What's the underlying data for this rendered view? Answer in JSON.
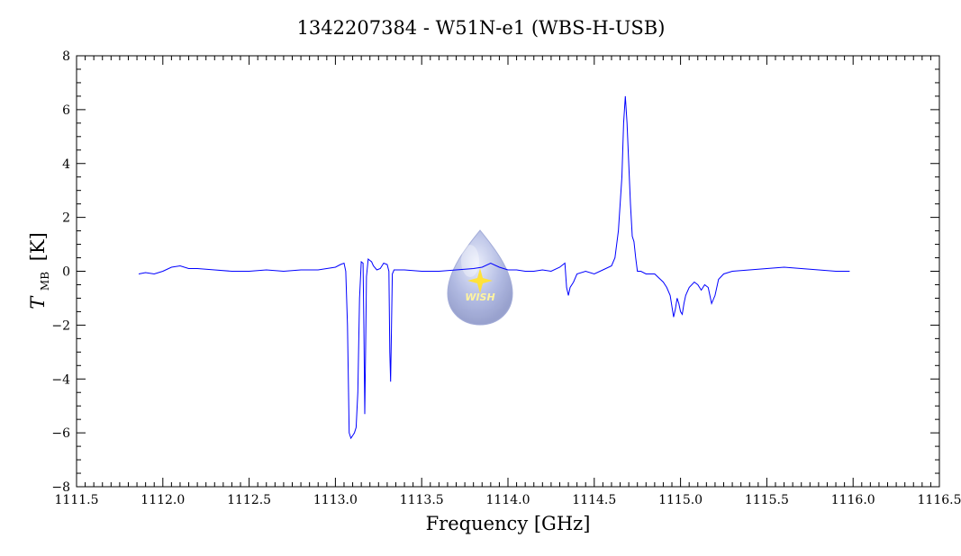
{
  "chart_data": {
    "type": "line",
    "title": "1342207384 - W51N-e1 (WBS-H-USB)",
    "xlabel": "Frequency [GHz]",
    "ylabel_main": "T",
    "ylabel_sub": "MB",
    "ylabel_unit": "[K]",
    "xlim": [
      1111.5,
      1116.5
    ],
    "ylim": [
      -8,
      8
    ],
    "x_ticks": [
      1111.5,
      1112.0,
      1112.5,
      1113.0,
      1113.5,
      1114.0,
      1114.5,
      1115.0,
      1115.5,
      1116.0,
      1116.5
    ],
    "x_tick_labels": [
      "1111.5",
      "1112.0",
      "1112.5",
      "1113.0",
      "1113.5",
      "1114.0",
      "1114.5",
      "1115.0",
      "1115.5",
      "1116.0",
      "1116.5"
    ],
    "y_ticks": [
      -8,
      -6,
      -4,
      -2,
      0,
      2,
      4,
      6,
      8
    ],
    "y_tick_labels": [
      "−8",
      "−6",
      "−4",
      "−2",
      "0",
      "2",
      "4",
      "6",
      "8"
    ],
    "grid": false,
    "series": [
      {
        "color": "#0000ff",
        "x": [
          1111.86,
          1111.9,
          1111.95,
          1112.0,
          1112.05,
          1112.1,
          1112.15,
          1112.2,
          1112.3,
          1112.4,
          1112.5,
          1112.6,
          1112.7,
          1112.8,
          1112.9,
          1112.95,
          1113.0,
          1113.03,
          1113.05,
          1113.06,
          1113.07,
          1113.08,
          1113.09,
          1113.1,
          1113.11,
          1113.12,
          1113.13,
          1113.14,
          1113.15,
          1113.16,
          1113.165,
          1113.17,
          1113.175,
          1113.18,
          1113.19,
          1113.2,
          1113.21,
          1113.22,
          1113.24,
          1113.26,
          1113.28,
          1113.3,
          1113.31,
          1113.315,
          1113.32,
          1113.325,
          1113.33,
          1113.34,
          1113.36,
          1113.4,
          1113.5,
          1113.6,
          1113.7,
          1113.8,
          1113.85,
          1113.9,
          1113.95,
          1114.0,
          1114.05,
          1114.1,
          1114.15,
          1114.2,
          1114.25,
          1114.3,
          1114.33,
          1114.34,
          1114.35,
          1114.36,
          1114.38,
          1114.4,
          1114.45,
          1114.5,
          1114.55,
          1114.6,
          1114.62,
          1114.64,
          1114.66,
          1114.67,
          1114.68,
          1114.69,
          1114.7,
          1114.71,
          1114.72,
          1114.73,
          1114.74,
          1114.75,
          1114.77,
          1114.8,
          1114.85,
          1114.9,
          1114.92,
          1114.94,
          1114.95,
          1114.96,
          1114.97,
          1114.98,
          1114.99,
          1115.0,
          1115.01,
          1115.02,
          1115.03,
          1115.05,
          1115.08,
          1115.1,
          1115.12,
          1115.14,
          1115.16,
          1115.18,
          1115.2,
          1115.22,
          1115.25,
          1115.3,
          1115.4,
          1115.5,
          1115.6,
          1115.7,
          1115.8,
          1115.9,
          1115.98
        ],
        "y": [
          -0.1,
          -0.05,
          -0.1,
          0.0,
          0.15,
          0.2,
          0.1,
          0.1,
          0.05,
          0.0,
          0.0,
          0.05,
          0.0,
          0.05,
          0.05,
          0.1,
          0.15,
          0.25,
          0.3,
          0.0,
          -2.0,
          -6.0,
          -6.2,
          -6.1,
          -6.0,
          -5.8,
          -4.5,
          -1.0,
          0.35,
          0.3,
          -2.0,
          -5.3,
          -3.0,
          -0.2,
          0.45,
          0.4,
          0.35,
          0.2,
          0.05,
          0.1,
          0.3,
          0.25,
          0.0,
          -3.0,
          -4.1,
          -2.0,
          -0.1,
          0.05,
          0.05,
          0.05,
          0.0,
          0.0,
          0.05,
          0.1,
          0.15,
          0.3,
          0.15,
          0.05,
          0.05,
          0.0,
          0.0,
          0.05,
          0.0,
          0.15,
          0.3,
          -0.6,
          -0.9,
          -0.6,
          -0.4,
          -0.1,
          0.0,
          -0.1,
          0.05,
          0.2,
          0.5,
          1.5,
          3.5,
          5.5,
          6.5,
          5.5,
          4.0,
          2.5,
          1.3,
          1.1,
          0.5,
          0.0,
          0.0,
          -0.1,
          -0.1,
          -0.4,
          -0.6,
          -0.9,
          -1.3,
          -1.7,
          -1.4,
          -1.0,
          -1.2,
          -1.5,
          -1.6,
          -1.2,
          -0.9,
          -0.6,
          -0.4,
          -0.5,
          -0.7,
          -0.5,
          -0.6,
          -1.2,
          -0.9,
          -0.3,
          -0.1,
          0.0,
          0.05,
          0.1,
          0.15,
          0.1,
          0.05,
          0.0,
          0.0
        ]
      }
    ]
  },
  "logo": {
    "text": "WISH",
    "colors": {
      "drop": "#aab4e0",
      "highlight": "#e8ecfb",
      "star": "#ffe23a",
      "text": "#fff4a0"
    }
  }
}
